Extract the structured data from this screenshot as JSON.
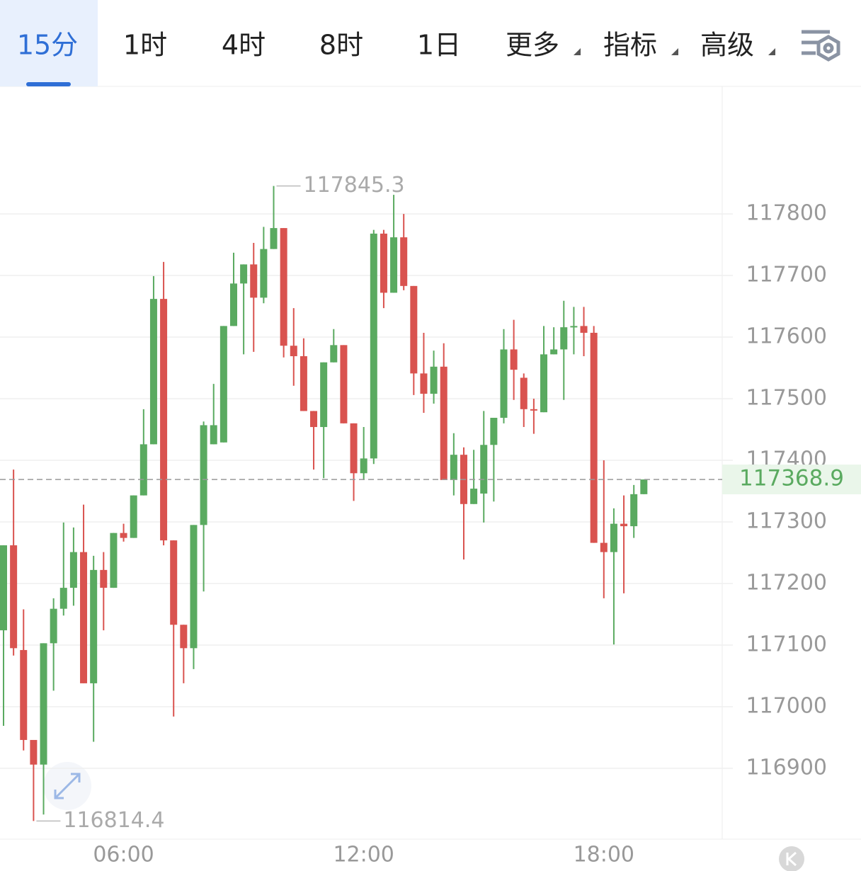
{
  "tabs": [
    "15分",
    "1时",
    "4时",
    "8时",
    "1日",
    "更多",
    "指标",
    "高级"
  ],
  "active_tab": 0,
  "chart_data": {
    "type": "candlestick",
    "categories": [
      null,
      null,
      null,
      null,
      null,
      null,
      null,
      null,
      null,
      null,
      null,
      null,
      "06:00",
      null,
      null,
      null,
      null,
      null,
      null,
      null,
      null,
      null,
      null,
      null,
      null,
      null,
      null,
      null,
      null,
      null,
      null,
      null,
      null,
      null,
      null,
      null,
      "12:00",
      null,
      null,
      null,
      null,
      null,
      null,
      null,
      null,
      null,
      null,
      null,
      null,
      null,
      null,
      null,
      null,
      null,
      null,
      null,
      null,
      null,
      null,
      null,
      "18:00",
      null,
      null,
      null,
      null
    ],
    "open": [
      117124,
      117262,
      117092,
      116946,
      116906,
      117103,
      117159,
      117193,
      117251,
      117038,
      117222,
      117193,
      117282,
      117274,
      117343,
      117426,
      117662,
      117270,
      117133,
      117095,
      117295,
      117426,
      117429,
      117618,
      117687,
      117718,
      117664,
      117743,
      117777,
      117586,
      117569,
      117480,
      117454,
      117559,
      117587,
      117460,
      117379,
      117403,
      117768,
      117672,
      117762,
      117683,
      117541,
      117508,
      117552,
      117368,
      117409,
      117329,
      117346,
      117425,
      117469,
      117580,
      117534,
      117483,
      117478,
      117572,
      117580,
      117616,
      117618,
      117607,
      117266,
      117251,
      117297,
      117293,
      117345
    ],
    "high": [
      117262,
      117385,
      117158,
      116946,
      117103,
      117176,
      117299,
      117291,
      117328,
      117245,
      117251,
      117282,
      117297,
      117343,
      117483,
      117699,
      117722,
      117270,
      117133,
      117295,
      117463,
      117524,
      117618,
      117737,
      117718,
      117753,
      117779,
      117845.3,
      117777,
      117647,
      117598,
      117480,
      117559,
      117613,
      117587,
      117460,
      117454,
      117774,
      117774,
      117831,
      117800,
      117683,
      117607,
      117578,
      117590,
      117444,
      117421,
      117417,
      117480,
      117469,
      117613,
      117628,
      117541,
      117500,
      117618,
      117616,
      117659,
      117649,
      117649,
      117618,
      117400,
      117322,
      117343,
      117360,
      117369
    ],
    "low": [
      116969,
      117083,
      116929,
      116814.4,
      116825,
      117026,
      117148,
      117164,
      117038,
      116943,
      117124,
      117193,
      117268,
      117274,
      117343,
      117426,
      117262,
      116984,
      117038,
      117061,
      117187,
      117426,
      117429,
      117618,
      117572,
      117576,
      117655,
      117743,
      117567,
      117521,
      117480,
      117385,
      117371,
      117559,
      117460,
      117334,
      117368,
      117394,
      117647,
      117672,
      117676,
      117506,
      117477,
      117492,
      117368,
      117343,
      117239,
      117329,
      117299,
      117333,
      117460,
      117498,
      117454,
      117443,
      117478,
      117572,
      117498,
      117572,
      117569,
      117266,
      117176,
      117101,
      117184,
      117274,
      117345
    ],
    "close": [
      117262,
      117095,
      116946,
      116906,
      117103,
      117159,
      117193,
      117251,
      117038,
      117222,
      117193,
      117282,
      117274,
      117343,
      117426,
      117662,
      117270,
      117133,
      117095,
      117295,
      117457,
      117457,
      117618,
      117687,
      117718,
      117664,
      117743,
      117777,
      117586,
      117569,
      117480,
      117454,
      117559,
      117587,
      117460,
      117379,
      117403,
      117768,
      117672,
      117762,
      117683,
      117541,
      117508,
      117552,
      117368,
      117409,
      117329,
      117354,
      117425,
      117469,
      117580,
      117547,
      117483,
      117481,
      117572,
      117580,
      117616,
      117618,
      117607,
      117266,
      117251,
      117297,
      117293,
      117345,
      117368.9
    ],
    "up_color": "#5aaa60",
    "down_color": "#d9534f",
    "ylim": [
      116785,
      118007
    ],
    "yticks": [
      116900,
      117000,
      117100,
      117200,
      117300,
      117400,
      117500,
      117600,
      117700,
      117800
    ],
    "grid": true
  }
}
